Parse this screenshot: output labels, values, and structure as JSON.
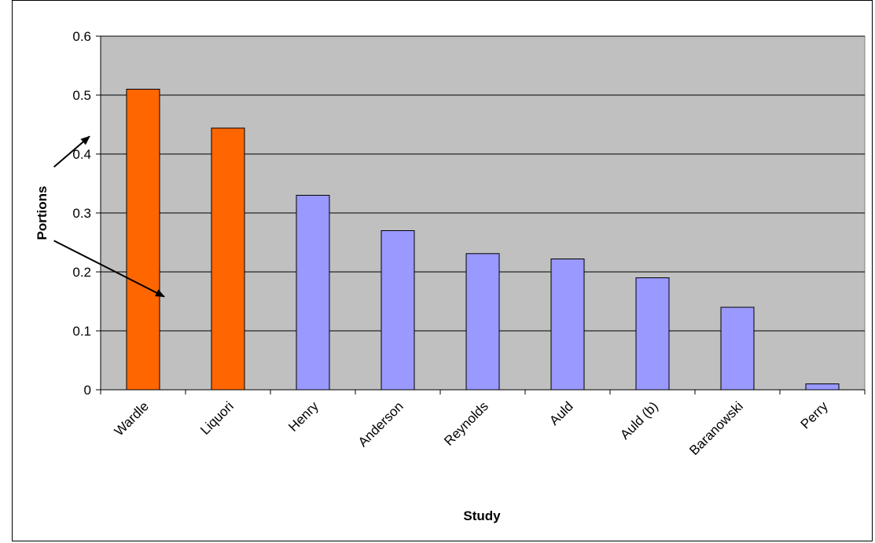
{
  "chart_data": {
    "type": "bar",
    "xlabel": "Study",
    "ylabel": "Portions",
    "ylim": [
      0,
      0.6
    ],
    "yticks": [
      "0",
      "0.1",
      "0.2",
      "0.3",
      "0.4",
      "0.5",
      "0.6"
    ],
    "ytick_values": [
      0,
      0.1,
      0.2,
      0.3,
      0.4,
      0.5,
      0.6
    ],
    "categories": [
      "Wardle",
      "Liquori",
      "Henry",
      "Anderson",
      "Reynolds",
      "Auld",
      "Auld (b)",
      "Baranowski",
      "Perry"
    ],
    "values": [
      0.51,
      0.444,
      0.33,
      0.27,
      0.231,
      0.222,
      0.19,
      0.14,
      0.01
    ],
    "highlighted": [
      true,
      true,
      false,
      false,
      false,
      false,
      false,
      false,
      false
    ],
    "grid": true,
    "plot_background": "#c0c0c0",
    "highlight_color": "#ff6600",
    "bar_color": "#9999ff",
    "annotations": [
      {
        "type": "arrow",
        "from": [
          -0.55,
          0.378
        ],
        "to": [
          -0.13,
          0.43
        ],
        "target": "Wardle"
      },
      {
        "type": "arrow",
        "from": [
          -0.55,
          0.253
        ],
        "to": [
          0.75,
          0.158
        ],
        "target": "Liquori"
      }
    ]
  }
}
